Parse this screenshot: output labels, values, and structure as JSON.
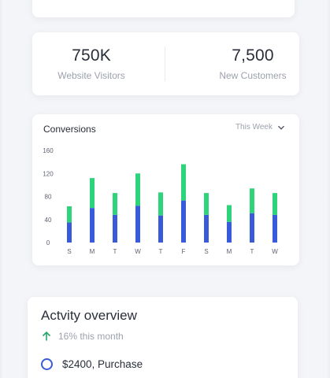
{
  "stats": [
    {
      "value": "750K",
      "label": "Website Visitors"
    },
    {
      "value": "7,500",
      "label": "New Customers"
    }
  ],
  "conversions": {
    "title": "Conversions",
    "period": "This Week"
  },
  "chart_data": {
    "type": "bar",
    "stacked": true,
    "categories": [
      "S",
      "M",
      "T",
      "W",
      "T",
      "F",
      "S",
      "M",
      "T",
      "W"
    ],
    "series": [
      {
        "values": [
          35,
          60,
          48,
          64,
          47,
          73,
          48,
          36,
          51,
          48
        ]
      },
      {
        "values": [
          28,
          52,
          38,
          56,
          40,
          63,
          38,
          29,
          43,
          38
        ]
      }
    ],
    "y_ticks": [
      "0",
      "40",
      "80",
      "120",
      "160"
    ],
    "ylim": [
      0,
      160
    ],
    "grid": false,
    "colors": [
      "#3a5bd9",
      "#2ed47a"
    ]
  },
  "activity": {
    "title": "Actvity overview",
    "trend": "16% this month",
    "items": [
      {
        "text": "$2400, Purchase"
      }
    ]
  },
  "colors": {
    "accent": "#3a5bd9",
    "positive": "#2ed47a",
    "trend": "#27a568"
  }
}
